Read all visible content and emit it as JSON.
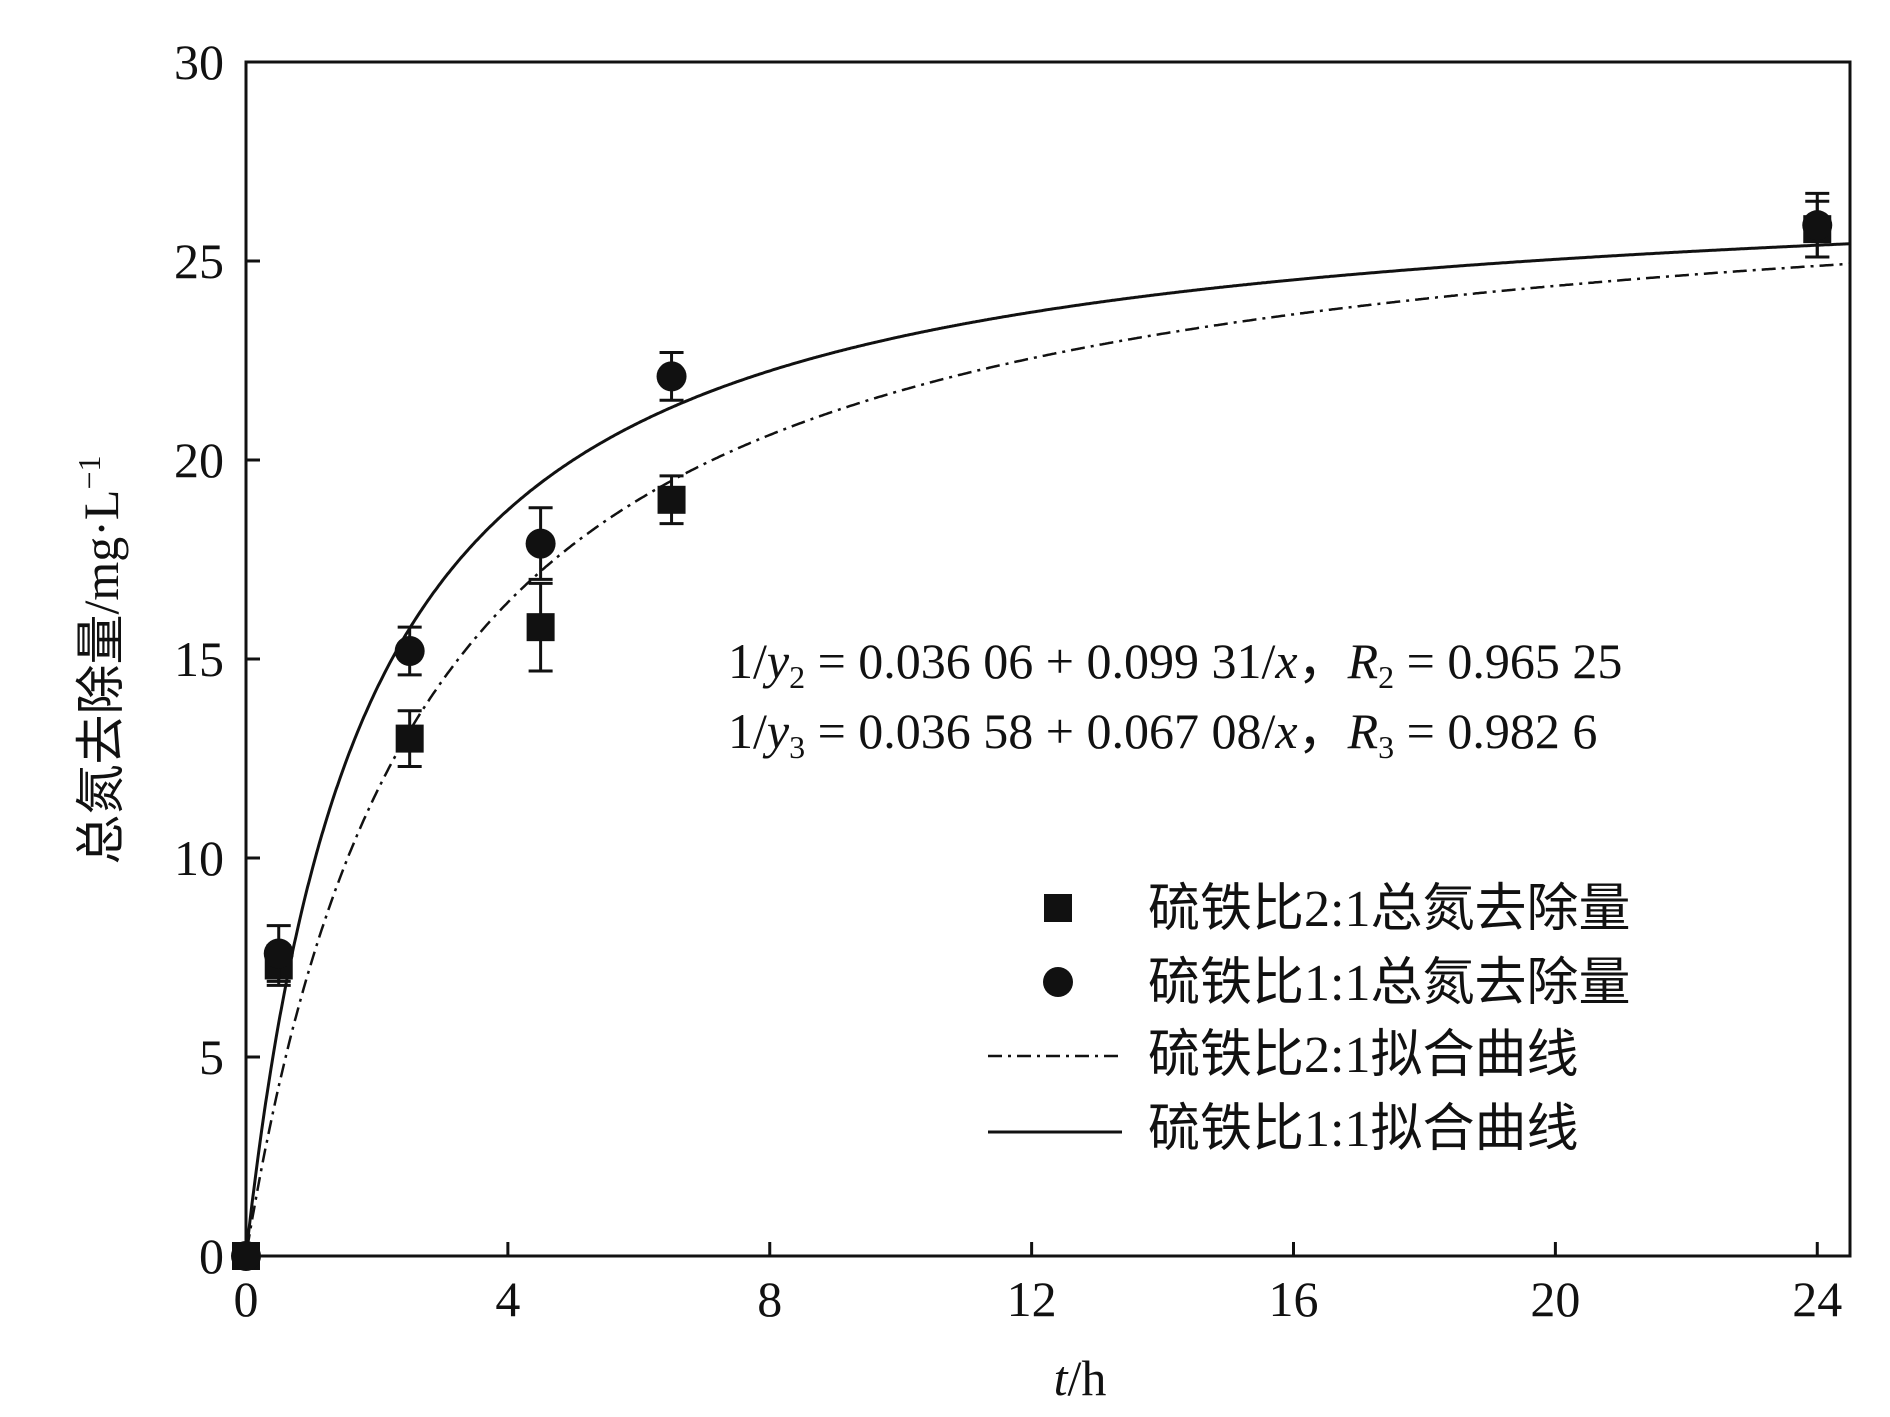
{
  "chart_data": {
    "type": "scatter",
    "xlabel_var": "t",
    "xlabel_unit": "/h",
    "ylabel": "总氮去除量/mg·L",
    "ylabel_sup": "−1",
    "xlim": [
      0,
      24.5
    ],
    "ylim": [
      0,
      30
    ],
    "xticks": [
      0,
      4,
      8,
      12,
      16,
      20,
      24
    ],
    "yticks": [
      0,
      5,
      10,
      15,
      20,
      25,
      30
    ],
    "grid": false,
    "legend_position": "bottom-right",
    "series": [
      {
        "name": "硫铁比2:1总氮去除量",
        "kind": "points",
        "marker": "square",
        "x": [
          0,
          0.5,
          2.5,
          4.5,
          6.5,
          24
        ],
        "y": [
          0,
          7.3,
          13.0,
          15.8,
          19.0,
          25.8
        ],
        "err": [
          0,
          0.5,
          0.7,
          1.1,
          0.6,
          0.7
        ]
      },
      {
        "name": "硫铁比1:1总氮去除量",
        "kind": "points",
        "marker": "circle",
        "x": [
          0,
          0.5,
          2.5,
          4.5,
          6.5,
          24
        ],
        "y": [
          0,
          7.6,
          15.2,
          17.9,
          22.1,
          25.9
        ],
        "err": [
          0,
          0.7,
          0.6,
          0.9,
          0.6,
          0.8
        ]
      },
      {
        "name": "硫铁比2:1拟合曲线",
        "kind": "fit",
        "style": "dashdot",
        "a": 0.03606,
        "b": 0.09931
      },
      {
        "name": "硫铁比1:1拟合曲线",
        "kind": "fit",
        "style": "solid",
        "a": 0.03658,
        "b": 0.06708
      }
    ],
    "equations": [
      {
        "lead": "1/",
        "y_var": "y",
        "y_sub": "2",
        "body": " = 0.036 06 + 0.099 31/",
        "x_var": "x",
        "sep": "，",
        "r_var": "R",
        "r_sub": "2",
        "r_val": " = 0.965 25"
      },
      {
        "lead": "1/",
        "y_var": "y",
        "y_sub": "3",
        "body": " = 0.036 58 + 0.067 08/",
        "x_var": "x",
        "sep": "，",
        "r_var": "R",
        "r_sub": "3",
        "r_val": " = 0.982 6"
      }
    ]
  }
}
